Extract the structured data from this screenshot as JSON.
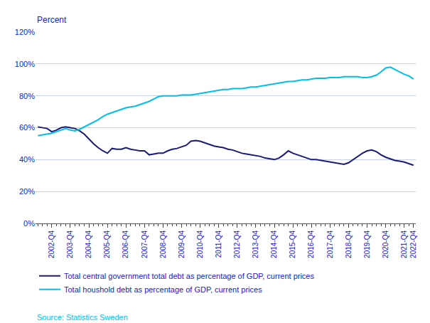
{
  "chart_data": {
    "type": "line",
    "ylabel": "Percent",
    "annotations": [
      "Source: Statistics Sweden"
    ],
    "categories": [
      null,
      null,
      null,
      "2002-Q4",
      null,
      null,
      null,
      "2003-Q4",
      null,
      null,
      null,
      "2004-Q4",
      null,
      null,
      null,
      "2005-Q4",
      null,
      null,
      null,
      "2006-Q4",
      null,
      null,
      null,
      "2007-Q4",
      null,
      null,
      null,
      "2008-Q4",
      null,
      null,
      null,
      "2009-Q4",
      null,
      null,
      null,
      "2010-Q4",
      null,
      null,
      null,
      "2011-Q4",
      null,
      null,
      null,
      "2012-Q4",
      null,
      null,
      null,
      "2013-Q4",
      null,
      null,
      null,
      "2014-Q4",
      null,
      null,
      null,
      "2015-Q4",
      null,
      null,
      null,
      "2016-Q4",
      null,
      null,
      null,
      "2017-Q4",
      null,
      null,
      null,
      "2018-Q4",
      null,
      null,
      null,
      "2019-Q4",
      null,
      null,
      null,
      "2020-Q4",
      null,
      null,
      null,
      "2021-Q4",
      null,
      "2022-Q4"
    ],
    "series": [
      {
        "name": "Total central government total debt as percentage of GDP, current prices",
        "color": "#1a1a7a",
        "values": [
          60.5,
          60.0,
          59.5,
          57.5,
          58.5,
          60.0,
          60.5,
          60.0,
          59.5,
          58.0,
          56.0,
          53.0,
          50.0,
          47.5,
          45.5,
          44.0,
          47.0,
          46.5,
          46.5,
          47.5,
          46.5,
          46.0,
          45.5,
          45.5,
          43.0,
          43.5,
          44.0,
          44.0,
          45.5,
          46.5,
          47.0,
          48.0,
          49.0,
          51.5,
          52.0,
          51.5,
          50.5,
          49.5,
          48.5,
          48.0,
          47.5,
          46.5,
          46.0,
          45.0,
          44.0,
          43.5,
          43.0,
          42.5,
          42.0,
          41.0,
          40.5,
          40.0,
          41.0,
          43.0,
          45.5,
          44.0,
          43.0,
          42.0,
          41.0,
          40.0,
          40.0,
          39.5,
          39.0,
          38.5,
          38.0,
          37.5,
          37.0,
          38.0,
          40.0,
          42.0,
          44.0,
          45.5,
          46.0,
          45.0,
          43.0,
          41.5,
          40.5,
          39.5,
          39.0,
          38.5,
          37.5,
          36.5
        ]
      },
      {
        "name": "Total houshold debt as percentage of GDP, current prices",
        "color": "#00c0e8",
        "values": [
          55.0,
          55.5,
          56.0,
          56.5,
          57.5,
          58.5,
          59.5,
          58.5,
          58.0,
          59.0,
          60.5,
          62.0,
          63.5,
          65.0,
          67.0,
          68.5,
          69.5,
          70.5,
          71.5,
          72.5,
          73.0,
          73.5,
          74.5,
          75.5,
          76.5,
          78.0,
          79.5,
          80.0,
          80.0,
          80.0,
          80.0,
          80.5,
          80.5,
          80.5,
          81.0,
          81.5,
          82.0,
          82.5,
          83.0,
          83.5,
          84.0,
          84.0,
          84.5,
          84.5,
          84.5,
          85.0,
          85.5,
          85.5,
          86.0,
          86.5,
          87.0,
          87.5,
          88.0,
          88.5,
          89.0,
          89.0,
          89.5,
          90.0,
          90.0,
          90.5,
          91.0,
          91.0,
          91.0,
          91.5,
          91.5,
          91.5,
          92.0,
          92.0,
          92.0,
          92.0,
          91.5,
          91.5,
          92.0,
          93.0,
          95.0,
          97.5,
          98.0,
          96.5,
          95.0,
          93.5,
          92.5,
          90.5
        ]
      }
    ],
    "ylim": [
      0,
      120
    ],
    "yticks": [
      {
        "value": 0,
        "label": "0%"
      },
      {
        "value": 20,
        "label": "20%"
      },
      {
        "value": 40,
        "label": "40%"
      },
      {
        "value": 60,
        "label": "60%"
      },
      {
        "value": 80,
        "label": "80%"
      },
      {
        "value": 100,
        "label": "100%"
      },
      {
        "value": 120,
        "label": "120%"
      }
    ],
    "grid": true,
    "legend": "bottom left"
  }
}
